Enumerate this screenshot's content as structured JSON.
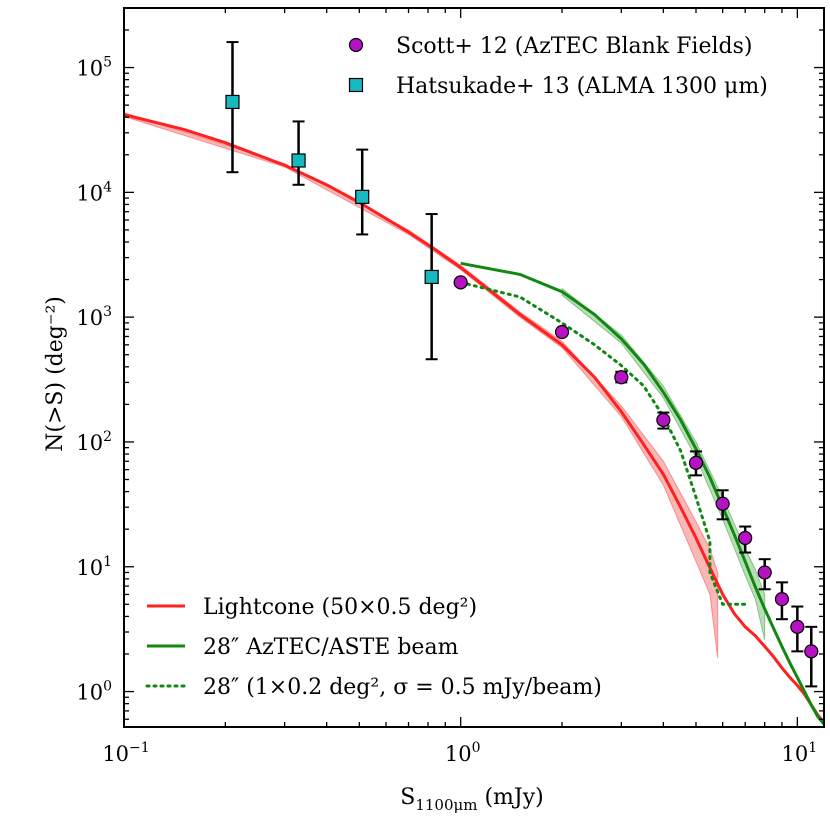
{
  "chart_data": {
    "type": "line",
    "title": "",
    "xlabel": "S1100μm (mJy)",
    "xlabel_main": "S",
    "xlabel_sub": "1100μm",
    "xlabel_unit": " (mJy)",
    "ylabel": "N(>S) (deg⁻²)",
    "xscale": "log",
    "yscale": "log",
    "xlim": [
      0.1,
      12
    ],
    "ylim": [
      0.52,
      300000
    ],
    "x_ticks": [
      {
        "value": 0.1,
        "base": "10",
        "exp": "−1"
      },
      {
        "value": 1,
        "base": "10",
        "exp": "0"
      },
      {
        "value": 10,
        "base": "10",
        "exp": "1"
      }
    ],
    "y_ticks": [
      {
        "value": 1,
        "base": "10",
        "exp": "0"
      },
      {
        "value": 10,
        "base": "10",
        "exp": "1"
      },
      {
        "value": 100,
        "base": "10",
        "exp": "2"
      },
      {
        "value": 1000,
        "base": "10",
        "exp": "3"
      },
      {
        "value": 10000,
        "base": "10",
        "exp": "4"
      },
      {
        "value": 100000,
        "base": "10",
        "exp": "5"
      }
    ],
    "colors": {
      "lightcone": "#ff2020",
      "lightcone_band": "#f7a0a0",
      "beam": "#118811",
      "beam_band": "#a6d6a6",
      "scott_fill": "#b512c4",
      "hatsukade_fill": "#18b8c0"
    },
    "series": [
      {
        "name": "Lightcone (50×0.5 deg²)",
        "style": "solid-red",
        "x": [
          0.1,
          0.15,
          0.2,
          0.3,
          0.4,
          0.5,
          0.7,
          0.85,
          1.0,
          1.2,
          1.5,
          2.0,
          2.5,
          3.0,
          3.5,
          4.0,
          4.5,
          5.0,
          5.5,
          6.0,
          6.5,
          7.0,
          7.5,
          8.0,
          8.5,
          9.0,
          9.5,
          10.0,
          10.5,
          11.0,
          11.5,
          12.0
        ],
        "y": [
          42000,
          32000,
          25000,
          16500,
          11500,
          8300,
          4800,
          3400,
          2500,
          1700,
          1050,
          600,
          330,
          175,
          95,
          55,
          30,
          17,
          9.8,
          6.0,
          4.2,
          3.3,
          2.8,
          2.3,
          1.9,
          1.55,
          1.3,
          1.12,
          0.95,
          0.78,
          0.65,
          0.56
        ],
        "band_x": [
          0.1,
          0.3,
          0.7,
          1.0,
          1.5,
          2.0,
          3.0,
          4.0,
          5.0,
          5.5,
          5.8
        ],
        "band_low": [
          40500,
          16000,
          4600,
          2400,
          1000,
          570,
          160,
          45,
          11,
          6.0,
          1.85
        ],
        "band_high": [
          43500,
          17000,
          5000,
          2600,
          1100,
          640,
          195,
          70,
          23,
          14,
          9.0
        ]
      },
      {
        "name": "28″ AzTEC/ASTE beam",
        "style": "solid-green",
        "x": [
          1.0,
          1.5,
          2.0,
          2.5,
          3.0,
          3.5,
          4.0,
          4.5,
          5.0,
          5.5,
          6.0,
          6.5,
          7.0,
          7.5,
          8.0,
          8.5,
          9.0,
          9.5,
          10.0,
          10.5,
          11.0,
          11.5,
          12.0
        ],
        "y": [
          2700,
          2200,
          1600,
          1050,
          670,
          420,
          250,
          150,
          88,
          52,
          30,
          18,
          11,
          6.9,
          4.6,
          3.2,
          2.3,
          1.7,
          1.3,
          1.0,
          0.78,
          0.63,
          0.55
        ],
        "band_x": [
          2.0,
          3.0,
          4.0,
          5.0,
          6.0,
          7.0,
          7.5,
          8.0
        ],
        "band_low": [
          1500,
          620,
          225,
          75,
          24,
          8.5,
          5.5,
          2.6
        ],
        "band_high": [
          1700,
          720,
          280,
          100,
          36,
          14,
          9.5,
          6.0
        ]
      },
      {
        "name": "28″ (1×0.2 deg², σ = 0.5 mJy/beam)",
        "style": "dotted-green",
        "x": [
          1.0,
          1.5,
          2.0,
          2.5,
          3.0,
          3.5,
          4.0,
          4.5,
          5.0,
          5.5,
          5.5,
          6.0,
          6.5,
          7.0,
          7.0
        ],
        "y": [
          1900,
          1450,
          900,
          600,
          410,
          280,
          160,
          85,
          36,
          16,
          9,
          5.0,
          5.0,
          5.0,
          5.0
        ]
      },
      {
        "name": "Scott+ 12 (AzTEC Blank Fields)",
        "style": "circle-magenta",
        "x": [
          1.0,
          2.0,
          3.0,
          4.0,
          5.0,
          6.0,
          7.0,
          8.0,
          9.0,
          10.0,
          11.0
        ],
        "y": [
          1900,
          760,
          330,
          150,
          68,
          32,
          17,
          9.0,
          5.5,
          3.3,
          2.1
        ],
        "err_low": [
          1830,
          720,
          300,
          128,
          54,
          24,
          13,
          6.6,
          3.8,
          2.1,
          1.1
        ],
        "err_high": [
          1970,
          800,
          365,
          172,
          84,
          41,
          21,
          11.5,
          7.5,
          4.8,
          3.3
        ]
      },
      {
        "name": "Hatsukade+ 13 (ALMA 1300 μm)",
        "style": "square-cyan",
        "x": [
          0.21,
          0.33,
          0.51,
          0.82
        ],
        "y": [
          53000,
          18000,
          9200,
          2100
        ],
        "err_low": [
          14500,
          11500,
          4600,
          460
        ],
        "err_high": [
          160000,
          37000,
          22000,
          6700
        ]
      }
    ],
    "legend_top": [
      {
        "label": "Scott+ 12 (AzTEC Blank Fields)",
        "marker": "circle"
      },
      {
        "label": "Hatsukade+ 13 (ALMA 1300 μm)",
        "marker": "square"
      }
    ],
    "legend_bottom": [
      {
        "label": "Lightcone (50×0.5 deg²)",
        "line": "solid-red"
      },
      {
        "label": "28″ AzTEC/ASTE beam",
        "line": "solid-green"
      },
      {
        "label": "28″ (1×0.2 deg², σ = 0.5 mJy/beam)",
        "line": "dotted-green"
      }
    ]
  }
}
